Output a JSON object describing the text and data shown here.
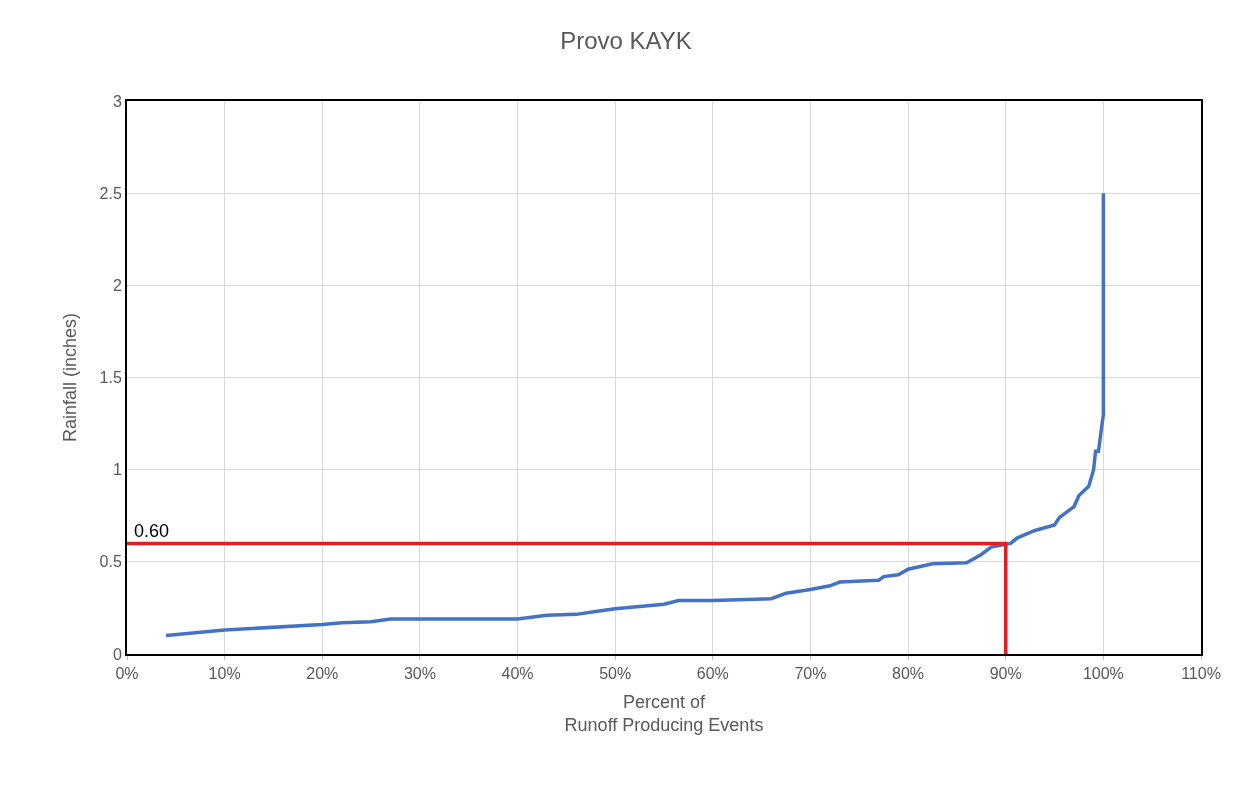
{
  "chart_data": {
    "type": "line",
    "title": "Provo KAYK",
    "xlabel": "Percent of\nRunoff Producing Events",
    "ylabel": "Rainfall (inches)",
    "xlim": [
      0,
      110
    ],
    "xticks": [
      {
        "value": 0,
        "label": "0%"
      },
      {
        "value": 10,
        "label": "10%"
      },
      {
        "value": 20,
        "label": "20%"
      },
      {
        "value": 30,
        "label": "30%"
      },
      {
        "value": 40,
        "label": "40%"
      },
      {
        "value": 50,
        "label": "50%"
      },
      {
        "value": 60,
        "label": "60%"
      },
      {
        "value": 70,
        "label": "70%"
      },
      {
        "value": 80,
        "label": "80%"
      },
      {
        "value": 90,
        "label": "90%"
      },
      {
        "value": 100,
        "label": "100%"
      },
      {
        "value": 110,
        "label": "110%"
      }
    ],
    "ylim": [
      0,
      3
    ],
    "yticks": [
      0,
      0.5,
      1,
      1.5,
      2,
      2.5,
      3
    ],
    "grid": true,
    "marker": "none",
    "line_style": "solid",
    "series": [
      {
        "color": "#4472c4",
        "x": [
          4,
          10,
          20,
          22,
          25,
          27,
          40,
          43,
          46,
          48,
          50,
          55,
          56.5,
          60,
          66,
          67.5,
          70,
          72,
          73,
          77,
          77.5,
          79,
          80,
          82.5,
          86,
          87.5,
          88.5,
          90.5,
          91.2,
          93,
          95,
          95.5,
          97,
          97.5,
          98.5,
          99,
          99.2,
          99.5,
          100,
          100
        ],
        "values": [
          0.1,
          0.13,
          0.16,
          0.17,
          0.175,
          0.19,
          0.19,
          0.21,
          0.215,
          0.23,
          0.245,
          0.27,
          0.29,
          0.29,
          0.3,
          0.33,
          0.35,
          0.37,
          0.39,
          0.4,
          0.42,
          0.43,
          0.46,
          0.49,
          0.495,
          0.54,
          0.58,
          0.6,
          0.63,
          0.67,
          0.7,
          0.74,
          0.8,
          0.86,
          0.91,
          1.0,
          1.1,
          1.1,
          1.3,
          2.5
        ]
      },
      {
        "color": "#e02020",
        "x": [
          0,
          90,
          90
        ],
        "values": [
          0.6,
          0.6,
          0
        ]
      }
    ],
    "annotations": [
      {
        "text": "0.60",
        "x": 0.5,
        "y": 0.6
      }
    ]
  }
}
